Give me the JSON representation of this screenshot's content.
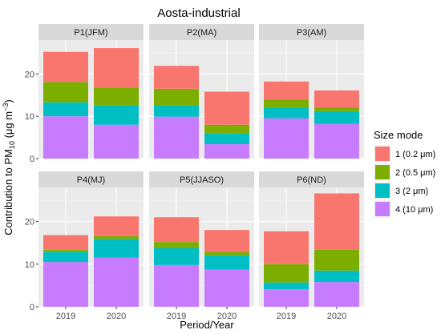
{
  "chart_data": {
    "type": "bar",
    "stacked": true,
    "faceted": true,
    "title": "Aosta-industrial",
    "xlabel": "Period/Year",
    "ylabel_main": "Contribution to PM",
    "ylabel_sub": "10",
    "ylabel_units_open": " (μg m",
    "ylabel_units_sup": "−3",
    "ylabel_units_close": ")",
    "ylim": [
      0,
      28
    ],
    "yticks": [
      0,
      10,
      20
    ],
    "categories": [
      "2019",
      "2020"
    ],
    "legend": {
      "title": "Size mode",
      "placement": "right",
      "entries": [
        {
          "label": "1 (0.2 μm)",
          "color": "#F8766D"
        },
        {
          "label": "2 (0.5 μm)",
          "color": "#7CAE00"
        },
        {
          "label": "3 (2 μm)",
          "color": "#00BFC4"
        },
        {
          "label": "4 (10 μm)",
          "color": "#C77CFF"
        }
      ]
    },
    "stack_order": [
      "4 (10 μm)",
      "3 (2 μm)",
      "2 (0.5 μm)",
      "1 (0.2 μm)"
    ],
    "panels": [
      {
        "name": "P1(JFM)",
        "values": {
          "2019": {
            "4 (10 μm)": 10.0,
            "3 (2 μm)": 3.3,
            "2 (0.5 μm)": 4.8,
            "1 (0.2 μm)": 7.1
          },
          "2020": {
            "4 (10 μm)": 8.0,
            "3 (2 μm)": 4.6,
            "2 (0.5 μm)": 4.2,
            "1 (0.2 μm)": 9.3
          }
        }
      },
      {
        "name": "P2(MA)",
        "values": {
          "2019": {
            "4 (10 μm)": 9.9,
            "3 (2 μm)": 2.7,
            "2 (0.5 μm)": 3.9,
            "1 (0.2 μm)": 5.4
          },
          "2020": {
            "4 (10 μm)": 3.4,
            "3 (2 μm)": 2.6,
            "2 (0.5 μm)": 2.0,
            "1 (0.2 μm)": 7.8
          }
        }
      },
      {
        "name": "P3(AM)",
        "values": {
          "2019": {
            "4 (10 μm)": 9.5,
            "3 (2 μm)": 2.5,
            "2 (0.5 μm)": 1.9,
            "1 (0.2 μm)": 4.3
          },
          "2020": {
            "4 (10 μm)": 8.2,
            "3 (2 μm)": 3.0,
            "2 (0.5 μm)": 0.9,
            "1 (0.2 μm)": 4.0
          }
        }
      },
      {
        "name": "P4(MJ)",
        "values": {
          "2019": {
            "4 (10 μm)": 10.5,
            "3 (2 μm)": 2.4,
            "2 (0.5 μm)": 0.5,
            "1 (0.2 μm)": 3.4
          },
          "2020": {
            "4 (10 μm)": 11.5,
            "3 (2 μm)": 4.4,
            "2 (0.5 μm)": 0.7,
            "1 (0.2 μm)": 4.6
          }
        }
      },
      {
        "name": "P5(JJASO)",
        "values": {
          "2019": {
            "4 (10 μm)": 9.8,
            "3 (2 μm)": 4.0,
            "2 (0.5 μm)": 1.4,
            "1 (0.2 μm)": 5.8
          },
          "2020": {
            "4 (10 μm)": 8.7,
            "3 (2 μm)": 3.4,
            "2 (0.5 μm)": 0.8,
            "1 (0.2 μm)": 5.1
          }
        }
      },
      {
        "name": "P6(ND)",
        "values": {
          "2019": {
            "4 (10 μm)": 4.1,
            "3 (2 μm)": 1.6,
            "2 (0.5 μm)": 4.3,
            "1 (0.2 μm)": 7.7
          },
          "2020": {
            "4 (10 μm)": 5.8,
            "3 (2 μm)": 2.7,
            "2 (0.5 μm)": 4.9,
            "1 (0.2 μm)": 13.2
          }
        }
      }
    ],
    "colors": {
      "panel_bg": "#EBEBEB",
      "strip_bg": "#D9D9D9",
      "grid_major": "#FFFFFF",
      "grid_minor": "#F5F5F5",
      "axis_text": "#4D4D4D",
      "strip_text": "#1A1A1A"
    }
  }
}
